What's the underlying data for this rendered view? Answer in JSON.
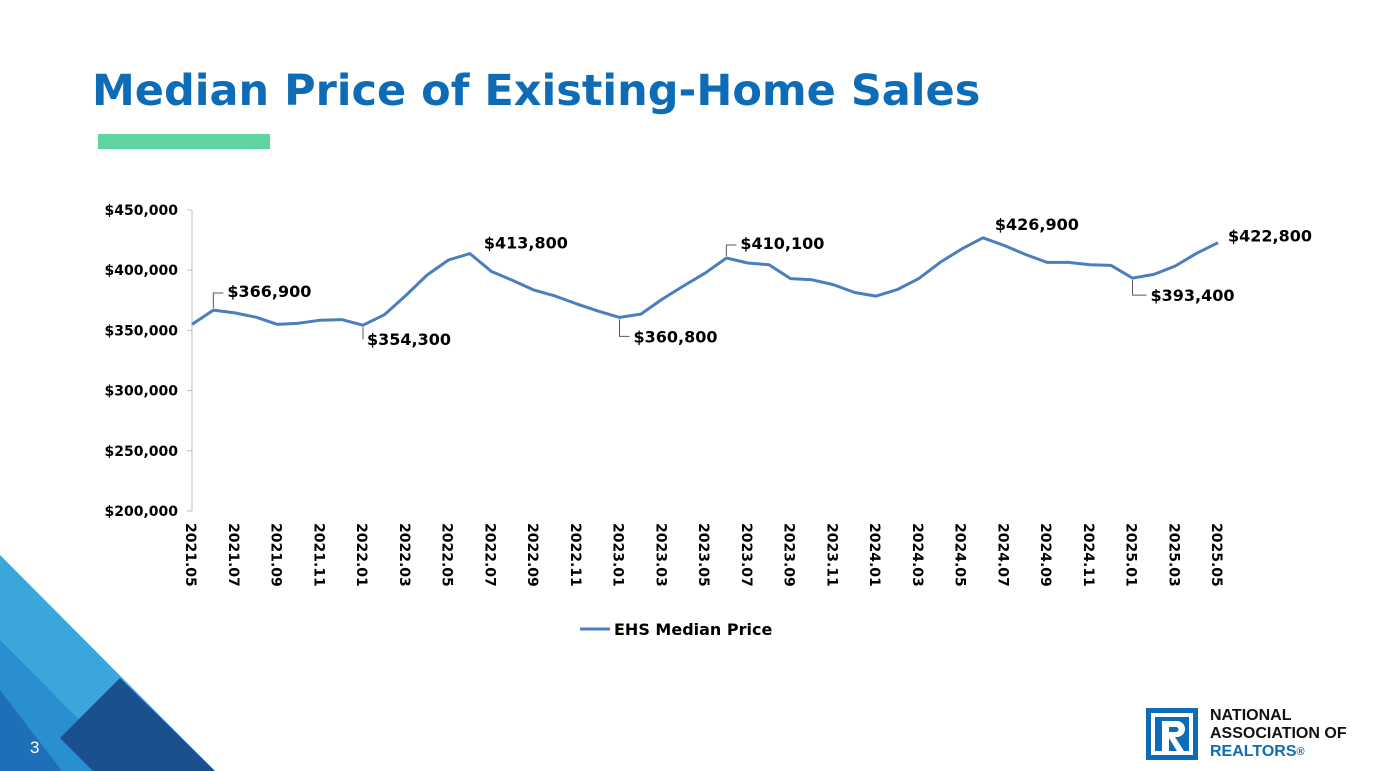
{
  "slide": {
    "title": "Median Price of Existing-Home Sales",
    "page_number": "3",
    "accent_color": "#5fd3a0",
    "title_color": "#0e6cb6"
  },
  "logo": {
    "line1": "NATIONAL",
    "line2": "ASSOCIATION OF",
    "line3": "REALTORS",
    "registered": "®",
    "mark_icon": "realtor-r-logo-icon"
  },
  "chart_data": {
    "type": "line",
    "title": "",
    "xlabel": "",
    "ylabel": "",
    "ylim": [
      200000,
      450000
    ],
    "y_ticks": [
      "$200,000",
      "$250,000",
      "$300,000",
      "$350,000",
      "$400,000",
      "$450,000"
    ],
    "y_tick_values": [
      200000,
      250000,
      300000,
      350000,
      400000,
      450000
    ],
    "x": [
      "2021.05",
      "2021.06",
      "2021.07",
      "2021.08",
      "2021.09",
      "2021.10",
      "2021.11",
      "2021.12",
      "2022.01",
      "2022.02",
      "2022.03",
      "2022.04",
      "2022.05",
      "2022.06",
      "2022.07",
      "2022.08",
      "2022.09",
      "2022.10",
      "2022.11",
      "2022.12",
      "2023.01",
      "2023.02",
      "2023.03",
      "2023.04",
      "2023.05",
      "2023.06",
      "2023.07",
      "2023.08",
      "2023.09",
      "2023.10",
      "2023.11",
      "2023.12",
      "2024.01",
      "2024.02",
      "2024.03",
      "2024.04",
      "2024.05",
      "2024.06",
      "2024.07",
      "2024.08",
      "2024.09",
      "2024.10",
      "2024.11",
      "2024.12",
      "2025.01",
      "2025.02",
      "2025.03",
      "2025.04",
      "2025.05"
    ],
    "x_tick_labels": [
      "2021.05",
      "2021.07",
      "2021.09",
      "2021.11",
      "2022.01",
      "2022.03",
      "2022.05",
      "2022.07",
      "2022.09",
      "2022.11",
      "2023.01",
      "2023.03",
      "2023.05",
      "2023.07",
      "2023.09",
      "2023.11",
      "2024.01",
      "2024.03",
      "2024.05",
      "2024.07",
      "2024.09",
      "2024.11",
      "2025.01",
      "2025.03",
      "2025.05"
    ],
    "series": [
      {
        "name": "EHS Median Price",
        "color": "#4a7ebf",
        "values": [
          355000,
          366900,
          364500,
          361000,
          355000,
          356000,
          358500,
          359000,
          354300,
          363000,
          379000,
          396000,
          408500,
          413800,
          399000,
          391500,
          383500,
          378500,
          372000,
          366000,
          360800,
          363500,
          376000,
          387000,
          397500,
          410100,
          406000,
          404500,
          393000,
          392000,
          388000,
          381500,
          378500,
          384000,
          393000,
          406500,
          417500,
          426900,
          420500,
          413000,
          406500,
          406500,
          404500,
          404000,
          393400,
          396500,
          403500,
          414000,
          422800
        ]
      }
    ],
    "data_labels": [
      {
        "index": 1,
        "text": "$366,900"
      },
      {
        "index": 8,
        "text": "$354,300"
      },
      {
        "index": 13,
        "text": "$413,800"
      },
      {
        "index": 20,
        "text": "$360,800"
      },
      {
        "index": 25,
        "text": "$410,100"
      },
      {
        "index": 37,
        "text": "$426,900"
      },
      {
        "index": 44,
        "text": "$393,400"
      },
      {
        "index": 48,
        "text": "$422,800"
      }
    ],
    "legend": {
      "position": "bottom",
      "label": "EHS Median Price"
    },
    "grid": false
  }
}
